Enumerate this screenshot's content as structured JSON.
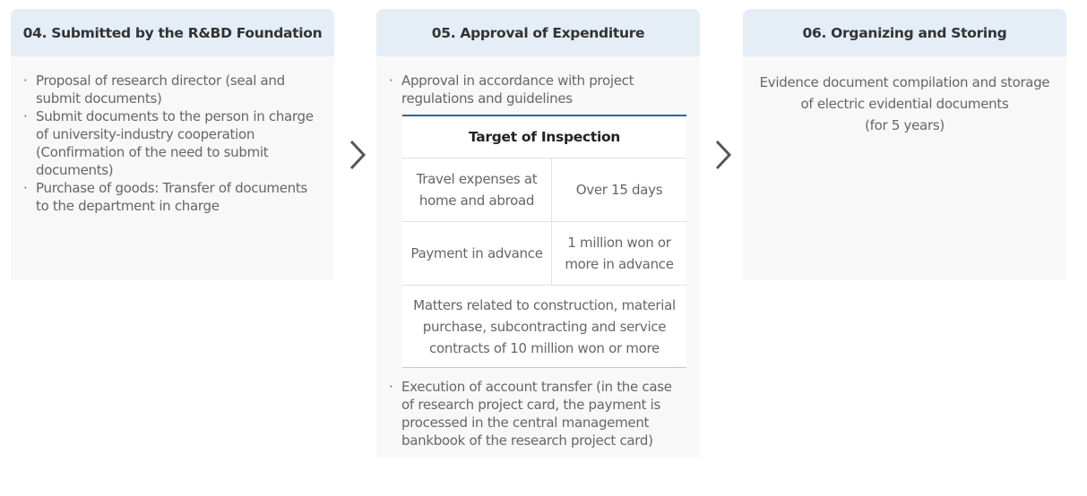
{
  "steps": [
    {
      "title": "04. Submitted by the R&BD Foundation",
      "items": [
        "Proposal of research director (seal and submit documents)",
        "Submit documents to the person in charge of university-industry cooperation (Confirmation of the need to submit documents)",
        "Purchase of goods: Transfer of documents to the department in charge"
      ]
    },
    {
      "title": "05. Approval of Expenditure",
      "items": [
        "Approval in accordance with project regulations and guidelines",
        "Execution of account transfer (in the case of research project card, the payment is processed in the central management bankbook of the research project card)"
      ],
      "table": {
        "header": "Target of Inspection",
        "rows": [
          [
            "Travel expenses at home and abroad",
            "Over 15 days"
          ],
          [
            "Payment in advance",
            "1 million won or more in advance"
          ]
        ],
        "full_row": "Matters related to construction, material purchase, subcontracting and service contracts of 10 million won or more"
      }
    },
    {
      "title": "06. Organizing and Storing",
      "text": "Evidence document compilation and storage of electric evidential documents",
      "note": "(for 5 years)"
    }
  ],
  "icons": {
    "arrow": "chevron-right-icon"
  },
  "colors": {
    "header_bg": "#e5edf7",
    "body_bg": "#f8f8f8",
    "table_accent": "#1a6bb0"
  }
}
